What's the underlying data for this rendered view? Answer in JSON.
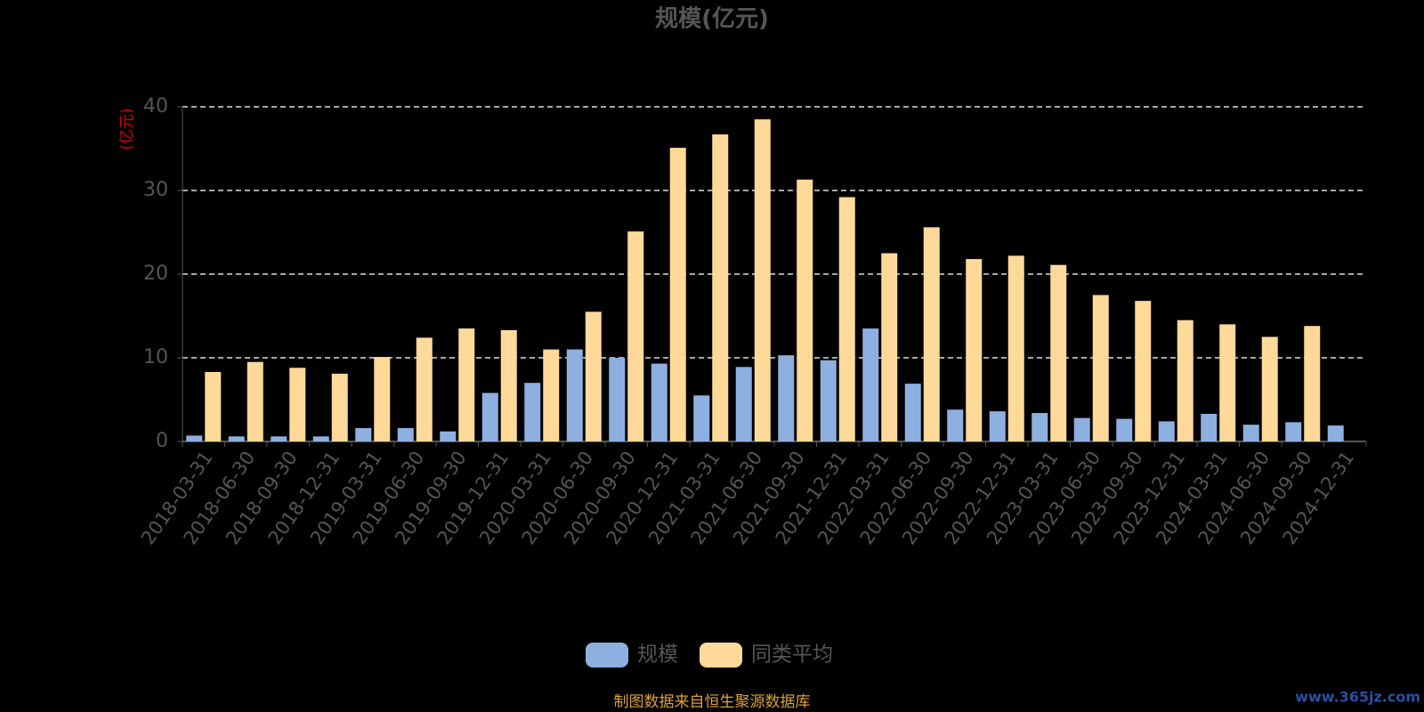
{
  "chart_data": {
    "type": "bar",
    "title": "规模(亿元)",
    "y_label": "(亿元)",
    "categories": [
      "2018-03-31",
      "2018-06-30",
      "2018-09-30",
      "2018-12-31",
      "2019-03-31",
      "2019-06-30",
      "2019-09-30",
      "2019-12-31",
      "2020-03-31",
      "2020-06-30",
      "2020-09-30",
      "2020-12-31",
      "2021-03-31",
      "2021-06-30",
      "2021-09-30",
      "2021-12-31",
      "2022-03-31",
      "2022-06-30",
      "2022-09-30",
      "2022-12-31",
      "2023-03-31",
      "2023-06-30",
      "2023-09-30",
      "2023-12-31",
      "2024-03-31",
      "2024-06-30",
      "2024-09-30",
      "2024-12-31"
    ],
    "series": [
      {
        "name": "规模",
        "color": "#8eb0e0",
        "values": [
          0.7,
          0.6,
          0.6,
          0.6,
          1.6,
          1.6,
          1.2,
          5.8,
          7.0,
          11.0,
          10.0,
          9.3,
          5.5,
          8.9,
          10.3,
          9.7,
          13.5,
          6.9,
          3.8,
          3.6,
          3.4,
          2.8,
          2.7,
          2.4,
          3.3,
          2.0,
          2.3,
          1.9
        ]
      },
      {
        "name": "同类平均",
        "color": "#ffd99a",
        "values": [
          8.3,
          9.5,
          8.8,
          8.1,
          10.1,
          12.4,
          13.5,
          13.3,
          11.0,
          15.5,
          25.1,
          35.1,
          36.7,
          38.5,
          31.3,
          29.2,
          22.5,
          25.6,
          21.8,
          22.2,
          21.1,
          17.5,
          16.8,
          14.5,
          14.0,
          12.5,
          13.8,
          null
        ]
      }
    ],
    "ylim": [
      0,
      40
    ],
    "yticks": [
      0,
      10,
      20,
      30,
      40
    ],
    "grid": true,
    "source": "制图数据来自恒生聚源数据库",
    "watermark": "www.365jz.com"
  }
}
